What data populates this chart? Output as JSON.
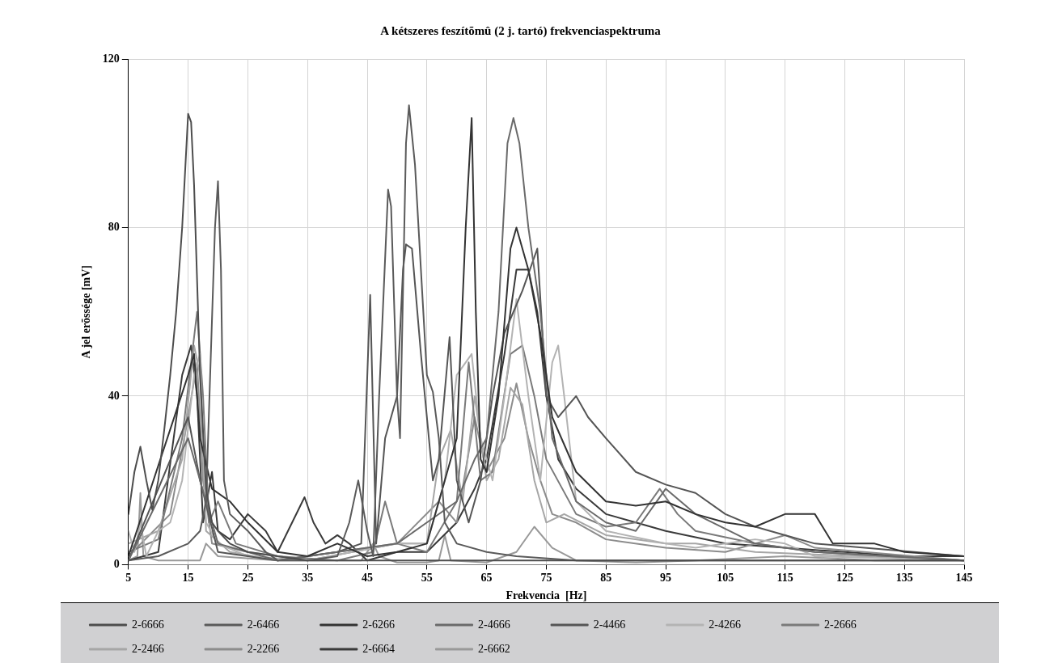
{
  "chart_data": {
    "type": "line",
    "title": "A kétszeres feszítõmû (2 j. tartó) frekvenciaspektruma",
    "xlabel": "Frekvencia  [Hz]",
    "ylabel": "A jel erõssége [mV]",
    "xlim": [
      5,
      145
    ],
    "xticks": [
      5,
      15,
      25,
      35,
      45,
      55,
      65,
      75,
      85,
      95,
      105,
      115,
      125,
      135,
      145
    ],
    "ylim": [
      0,
      120
    ],
    "yticks": [
      0,
      40,
      80,
      120
    ],
    "grid": true,
    "legend": "bottom",
    "marker": "none",
    "line_style": "solid",
    "series": [
      {
        "name": "2-6666",
        "color": "#4d4d4d",
        "x": [
          5,
          6,
          7,
          8,
          9,
          10,
          11,
          12,
          13,
          14,
          15,
          15.5,
          16,
          17,
          18,
          19,
          20,
          22,
          25,
          30,
          35,
          40,
          45,
          50,
          55,
          60,
          65,
          70,
          75,
          80,
          90,
          100,
          110,
          120,
          130,
          145
        ],
        "values": [
          12,
          22,
          28,
          20,
          13,
          20,
          32,
          45,
          60,
          80,
          107,
          105,
          90,
          45,
          18,
          10,
          8,
          5,
          3,
          2,
          1,
          1,
          1,
          1,
          1,
          1,
          1,
          1,
          1,
          1,
          1,
          1,
          1,
          1,
          1,
          1
        ]
      },
      {
        "name": "2-6466",
        "color": "#5a5a5a",
        "x": [
          5,
          10,
          15,
          17,
          18,
          19.5,
          20,
          20.5,
          21,
          22,
          25,
          28,
          30,
          35,
          40,
          42,
          43.5,
          45,
          46,
          47,
          48.5,
          49,
          50,
          50.5,
          51.5,
          52,
          53,
          54,
          55,
          56,
          57,
          58,
          60,
          65,
          70,
          80,
          145
        ],
        "values": [
          1,
          2,
          5,
          8,
          15,
          80,
          91,
          70,
          20,
          12,
          8,
          3,
          1,
          1,
          2,
          10,
          20,
          8,
          2,
          40,
          89,
          85,
          40,
          30,
          100,
          109,
          95,
          70,
          45,
          41,
          30,
          10,
          5,
          3,
          2,
          1,
          1
        ]
      },
      {
        "name": "2-6266",
        "color": "#333333",
        "x": [
          5,
          15,
          16,
          17,
          19,
          22,
          25,
          30,
          35,
          40,
          45,
          50,
          55,
          58,
          60,
          61.5,
          62.5,
          63.2,
          64,
          65,
          67,
          69,
          70,
          72,
          74,
          76,
          80,
          85,
          90,
          95,
          100,
          105,
          110,
          115,
          120,
          123,
          130,
          135,
          145
        ],
        "values": [
          2,
          45,
          50,
          30,
          18,
          15,
          10,
          3,
          2,
          5,
          2,
          3,
          5,
          20,
          30,
          80,
          106,
          60,
          25,
          22,
          40,
          75,
          80,
          70,
          55,
          35,
          22,
          15,
          14,
          15,
          12,
          10,
          9,
          12,
          12,
          5,
          5,
          3,
          2
        ]
      },
      {
        "name": "2-4666",
        "color": "#6a6a6a",
        "x": [
          5,
          15,
          17,
          20,
          30,
          50,
          55,
          60,
          63,
          65,
          67,
          68.5,
          69.5,
          70.5,
          72,
          74,
          76,
          80,
          85,
          90,
          95,
          100,
          110,
          120,
          145
        ],
        "values": [
          1,
          30,
          20,
          5,
          1,
          5,
          10,
          15,
          25,
          30,
          60,
          100,
          106,
          100,
          80,
          60,
          30,
          15,
          10,
          8,
          18,
          12,
          5,
          3,
          1
        ]
      },
      {
        "name": "2-4466",
        "color": "#555555",
        "x": [
          5,
          15,
          17,
          20,
          30,
          40,
          44,
          45.5,
          46.5,
          48,
          50,
          51,
          51.5,
          52.5,
          54,
          56,
          57,
          58.8,
          60,
          62,
          64,
          66,
          68,
          71,
          73.5,
          75,
          77,
          80,
          82,
          85,
          90,
          95,
          100,
          105,
          110,
          115,
          120,
          145
        ],
        "values": [
          1,
          35,
          20,
          3,
          1,
          3,
          5,
          64,
          5,
          30,
          40,
          70,
          76,
          75,
          50,
          20,
          25,
          54,
          20,
          10,
          20,
          40,
          55,
          65,
          75,
          40,
          35,
          40,
          35,
          30,
          22,
          19,
          17,
          12,
          9,
          7,
          5,
          2
        ]
      },
      {
        "name": "2-4266",
        "color": "#b3b3b3",
        "x": [
          5,
          6,
          7,
          8,
          10,
          12,
          14,
          16,
          17,
          18,
          20,
          25,
          35,
          50,
          55,
          58,
          60,
          62.5,
          64,
          66,
          68,
          70,
          72,
          74,
          76,
          77,
          78,
          80,
          85,
          95,
          100,
          110,
          115,
          120,
          145
        ],
        "values": [
          8,
          3,
          10,
          2,
          8,
          10,
          20,
          45,
          50,
          10,
          5,
          2,
          1,
          5,
          5,
          20,
          45,
          50,
          30,
          20,
          40,
          63,
          40,
          20,
          48,
          52,
          40,
          15,
          8,
          5,
          4,
          6,
          5,
          2,
          1
        ]
      },
      {
        "name": "2-2666",
        "color": "#7a7a7a",
        "x": [
          5,
          10,
          14,
          16.5,
          17.5,
          18.5,
          20,
          23,
          30,
          40,
          46,
          48,
          50,
          55,
          60,
          62,
          64,
          66,
          69,
          71,
          73,
          75,
          80,
          85,
          90,
          94,
          97,
          100,
          110,
          115,
          120,
          145
        ],
        "values": [
          3,
          6,
          30,
          60,
          40,
          10,
          15,
          5,
          2,
          1,
          3,
          15,
          5,
          3,
          15,
          48,
          20,
          22,
          50,
          52,
          40,
          25,
          12,
          9,
          10,
          18,
          12,
          8,
          5,
          4,
          3,
          1
        ]
      },
      {
        "name": "2-2466",
        "color": "#a6a6a6",
        "x": [
          5,
          10,
          14,
          16,
          17,
          18,
          22,
          30,
          50,
          55,
          57,
          59,
          61,
          63,
          65,
          67,
          69,
          71,
          73,
          75,
          78,
          85,
          95,
          100,
          110,
          145
        ],
        "values": [
          5,
          8,
          25,
          52,
          45,
          8,
          3,
          1,
          5,
          5,
          25,
          32,
          15,
          40,
          20,
          25,
          42,
          38,
          20,
          10,
          12,
          7,
          5,
          5,
          3,
          1
        ]
      },
      {
        "name": "2-2266",
        "color": "#8c8c8c",
        "x": [
          5,
          12,
          15,
          16.5,
          17.5,
          19,
          25,
          35,
          50,
          57,
          60,
          63,
          65,
          68,
          70,
          72,
          74,
          76,
          80,
          85,
          95,
          105,
          115,
          120,
          145
        ],
        "values": [
          2,
          12,
          35,
          48,
          20,
          5,
          3,
          1,
          5,
          15,
          10,
          35,
          22,
          30,
          43,
          30,
          20,
          12,
          10,
          6,
          4,
          3,
          7,
          4,
          1
        ]
      },
      {
        "name": "2-6664",
        "color": "#3a3a3a",
        "x": [
          5,
          10,
          14,
          15.5,
          16.5,
          17.5,
          19,
          20,
          22,
          25,
          28,
          30,
          34.5,
          36,
          38,
          40,
          42,
          45,
          50,
          55,
          60,
          63,
          65,
          68,
          70,
          72,
          73.5,
          75,
          77,
          80,
          85,
          90,
          95,
          105,
          115,
          125,
          135,
          145
        ],
        "values": [
          1,
          3,
          45,
          52,
          40,
          10,
          22,
          8,
          6,
          12,
          8,
          3,
          16,
          10,
          5,
          7,
          5,
          1,
          3,
          3,
          10,
          18,
          25,
          50,
          70,
          70,
          60,
          40,
          25,
          18,
          12,
          10,
          8,
          5,
          4,
          3,
          2,
          2
        ]
      },
      {
        "name": "2-6662",
        "color": "#999999",
        "x": [
          5,
          6.5,
          7,
          7.5,
          10,
          17,
          18,
          20,
          30,
          44,
          46,
          47,
          50,
          55,
          57,
          58,
          59,
          65,
          70,
          73,
          76,
          80,
          90,
          100,
          115,
          130,
          145
        ],
        "values": [
          1,
          2,
          17,
          2,
          1,
          1,
          5,
          2,
          1,
          1,
          5,
          2,
          0.5,
          0.5,
          1,
          7,
          1,
          0.5,
          3,
          9,
          4,
          1,
          0.5,
          1,
          2,
          1,
          1
        ]
      }
    ]
  }
}
